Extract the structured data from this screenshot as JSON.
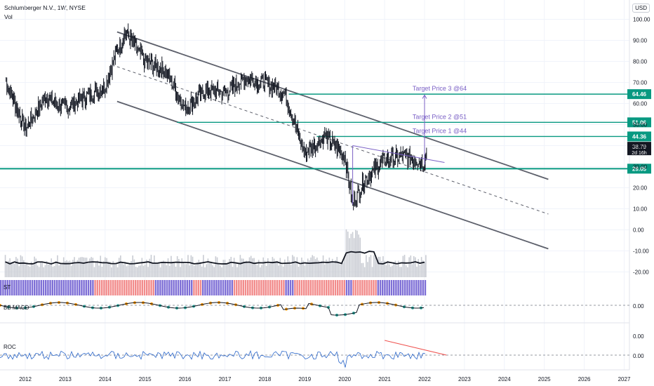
{
  "header": {
    "title": "Schlumberger N.V., 1W, NYSE",
    "vol_label": "Vol",
    "currency": "USD"
  },
  "chart_data": {
    "type": "line",
    "title": "Schlumberger N.V., 1W, NYSE",
    "x": [
      "2011.5",
      "2012.0",
      "2012.5",
      "2013.0",
      "2013.5",
      "2014.0",
      "2014.2",
      "2014.5",
      "2015.0",
      "2015.5",
      "2016.0",
      "2016.5",
      "2017.0",
      "2017.5",
      "2018.0",
      "2018.5",
      "2019.0",
      "2019.5",
      "2020.0",
      "2020.2",
      "2020.5",
      "2021.0",
      "2021.5",
      "2022.0",
      "2022.05"
    ],
    "series": [
      {
        "values": [
          71,
          48,
          63,
          58,
          63,
          68,
          80,
          94,
          80,
          76,
          58,
          66,
          65,
          72,
          70,
          65,
          36,
          45,
          35,
          12,
          24,
          33,
          35,
          32,
          38.79
        ]
      }
    ],
    "xticks": [
      "2012",
      "2013",
      "2014",
      "2015",
      "2016",
      "2017",
      "2018",
      "2019",
      "2020",
      "2021",
      "2022",
      "2023",
      "2024",
      "2025",
      "2026",
      "2027"
    ],
    "yticks": [
      "100.00",
      "90.00",
      "80.00",
      "70.00",
      "60.00",
      "50.00",
      "40.00",
      "30.00",
      "20.00",
      "10.00",
      "0.00",
      "-10.00",
      "-20.00"
    ],
    "ylim": [
      -20,
      100
    ],
    "xlim": [
      2011.4,
      2027.6
    ],
    "last_price": "38.79",
    "countdown": "2d 16h",
    "levels": [
      {
        "label": "Target Price 3 @64",
        "value": 64.46,
        "tag": "64.46"
      },
      {
        "label": "Target Price 2 @51",
        "value": 51.06,
        "tag": "51.06"
      },
      {
        "label": "Target Price 1 @44",
        "value": 44.36,
        "tag": "44.36"
      },
      {
        "label": "",
        "value": 29.05,
        "tag": "29.05"
      }
    ],
    "channel": {
      "upper": [
        [
          2014.3,
          94
        ],
        [
          2025.1,
          24
        ]
      ],
      "lower": [
        [
          2014.3,
          61
        ],
        [
          2025.1,
          -9
        ]
      ],
      "mid": [
        [
          2014.3,
          77.5
        ],
        [
          2025.1,
          7.5
        ]
      ]
    },
    "sub_panels": [
      {
        "name": "ST"
      },
      {
        "name": "BB MACD",
        "value": "0.00"
      },
      {
        "name": "ROC",
        "value": "0.00",
        "extra_tick": "0.00"
      }
    ],
    "colors": {
      "level": "#089981",
      "channel": "#5d606b",
      "target_arrow": "#7b61c6",
      "divergence": "#ef5350",
      "st_bull": "#7e6fd6",
      "st_bear": "#f28b8b",
      "macd_up": "#26a69a",
      "macd_down": "#ff9800"
    }
  }
}
